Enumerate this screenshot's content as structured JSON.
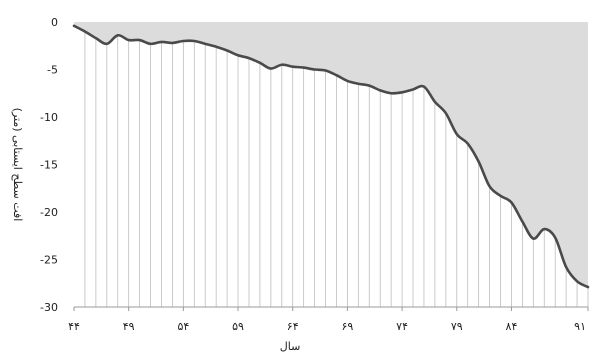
{
  "chart_data": {
    "type": "area",
    "xlabel": "سال",
    "ylabel": "افت سطح ایستابی (متر)",
    "ylim": [
      -30,
      0
    ],
    "xlim": [
      44,
      91
    ],
    "x_ticks": [
      44,
      49,
      54,
      59,
      64,
      69,
      74,
      79,
      84,
      91
    ],
    "x_tick_labels": [
      "۴۴",
      "۴۹",
      "۵۴",
      "۵۹",
      "۶۴",
      "۶۹",
      "۷۴",
      "۷۹",
      "۸۴",
      "۹۱"
    ],
    "y_ticks": [
      0,
      -5,
      -10,
      -15,
      -20,
      -25,
      -30
    ],
    "y_tick_labels": [
      "0",
      "-5",
      "-10",
      "-15",
      "-20",
      "-25",
      "-30"
    ],
    "grid": "vertical",
    "colors": {
      "line": "#4a4a4a",
      "fill": "#dcdcdc",
      "grid": "#bdbdbd"
    },
    "series": [
      {
        "x": [
          44,
          45,
          46,
          47,
          48,
          49,
          50,
          51,
          52,
          53,
          54,
          55,
          56,
          57,
          58,
          59,
          60,
          61,
          62,
          63,
          64,
          65,
          66,
          67,
          68,
          69,
          70,
          71,
          72,
          73,
          74,
          75,
          76,
          77,
          78,
          79,
          80,
          81,
          82,
          83,
          84,
          85,
          86,
          87,
          88,
          89,
          90,
          91
        ],
        "values": [
          -0.4,
          -1.0,
          -1.7,
          -2.3,
          -1.4,
          -1.9,
          -1.9,
          -2.3,
          -2.1,
          -2.2,
          -2.0,
          -2.0,
          -2.3,
          -2.6,
          -3.0,
          -3.5,
          -3.8,
          -4.3,
          -4.9,
          -4.5,
          -4.7,
          -4.8,
          -5.0,
          -5.1,
          -5.6,
          -6.2,
          -6.5,
          -6.7,
          -7.2,
          -7.5,
          -7.4,
          -7.1,
          -6.8,
          -8.4,
          -9.6,
          -11.8,
          -12.8,
          -14.7,
          -17.3,
          -18.3,
          -19.0,
          -21.0,
          -22.8,
          -21.8,
          -22.7,
          -25.8,
          -27.3,
          -27.9
        ]
      }
    ]
  }
}
